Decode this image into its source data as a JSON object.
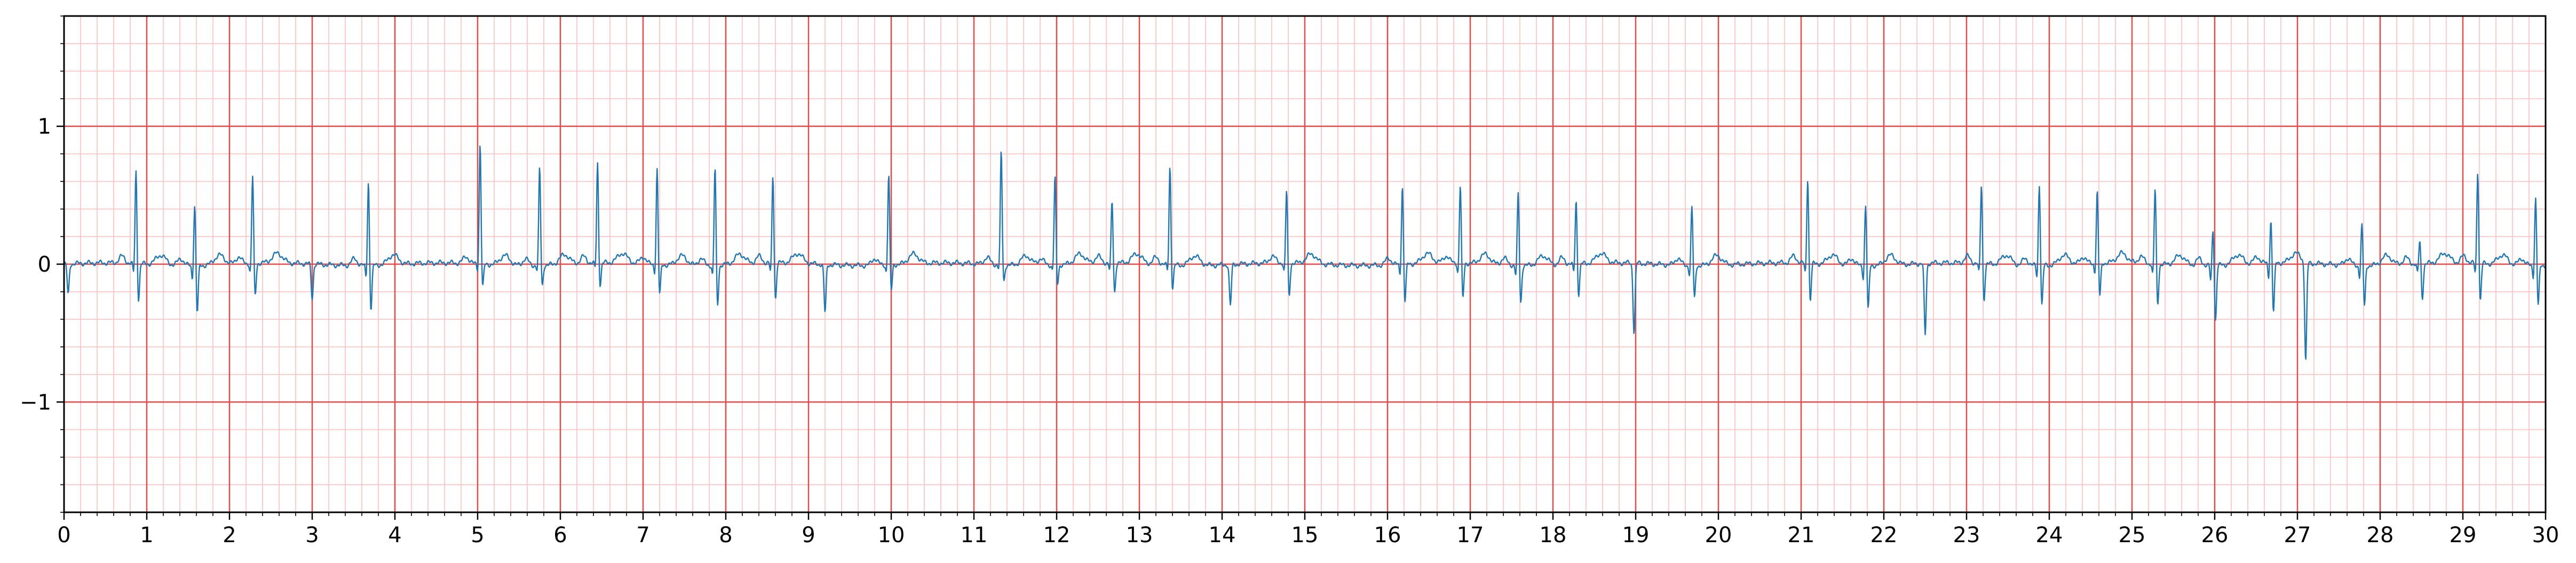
{
  "chart_data": {
    "type": "line",
    "title": "",
    "xlabel": "",
    "ylabel": "",
    "xlim": [
      0,
      30
    ],
    "ylim": [
      -1.8,
      1.8
    ],
    "x_ticks": [
      0,
      1,
      2,
      3,
      4,
      5,
      6,
      7,
      8,
      9,
      10,
      11,
      12,
      13,
      14,
      15,
      16,
      17,
      18,
      19,
      20,
      21,
      22,
      23,
      24,
      25,
      26,
      27,
      28,
      29,
      30
    ],
    "x_tick_labels": [
      "0",
      "1",
      "2",
      "3",
      "4",
      "5",
      "6",
      "7",
      "8",
      "9",
      "10",
      "11",
      "12",
      "13",
      "14",
      "15",
      "16",
      "17",
      "18",
      "19",
      "20",
      "21",
      "22",
      "23",
      "24",
      "25",
      "26",
      "27",
      "28",
      "29",
      "30"
    ],
    "y_ticks": [
      -1,
      0,
      1
    ],
    "y_tick_labels": [
      "−1",
      "0",
      "1"
    ],
    "grid": {
      "major": true,
      "minor": true,
      "major_step_x": 1,
      "minor_step_x": 0.2,
      "major_step_y": 1,
      "minor_step_y": 0.2,
      "major_color": "#e84a4a",
      "minor_color": "#ffc0c0"
    },
    "series_color": "#1f77b4",
    "beats": [
      {
        "t": 0.87,
        "r": 0.68,
        "q": -0.27
      },
      {
        "t": 1.58,
        "r": 0.45,
        "q": -0.35
      },
      {
        "t": 2.28,
        "r": 0.64,
        "q": -0.25
      },
      {
        "t": 3.68,
        "r": 0.62,
        "q": -0.33
      },
      {
        "t": 5.03,
        "r": 0.88,
        "q": -0.18
      },
      {
        "t": 5.75,
        "r": 0.71,
        "q": -0.16
      },
      {
        "t": 6.45,
        "r": 0.73,
        "q": -0.17
      },
      {
        "t": 7.17,
        "r": 0.7,
        "q": -0.23
      },
      {
        "t": 7.87,
        "r": 0.71,
        "q": -0.3
      },
      {
        "t": 8.57,
        "r": 0.64,
        "q": -0.27
      },
      {
        "t": 9.97,
        "r": 0.66,
        "q": -0.2
      },
      {
        "t": 11.33,
        "r": 0.82,
        "q": -0.13
      },
      {
        "t": 11.98,
        "r": 0.64,
        "q": -0.15
      },
      {
        "t": 12.67,
        "r": 0.45,
        "q": -0.22
      },
      {
        "t": 13.37,
        "r": 0.72,
        "q": -0.18
      },
      {
        "t": 14.78,
        "r": 0.53,
        "q": -0.25
      },
      {
        "t": 16.18,
        "r": 0.58,
        "q": -0.28
      },
      {
        "t": 16.88,
        "r": 0.57,
        "q": -0.27
      },
      {
        "t": 17.58,
        "r": 0.53,
        "q": -0.28
      },
      {
        "t": 18.28,
        "r": 0.47,
        "q": -0.23
      },
      {
        "t": 19.68,
        "r": 0.43,
        "q": -0.25
      },
      {
        "t": 21.08,
        "r": 0.63,
        "q": -0.28
      },
      {
        "t": 21.78,
        "r": 0.45,
        "q": -0.33
      },
      {
        "t": 23.18,
        "r": 0.58,
        "q": -0.27
      },
      {
        "t": 23.88,
        "r": 0.6,
        "q": -0.3
      },
      {
        "t": 24.58,
        "r": 0.53,
        "q": -0.25
      },
      {
        "t": 25.28,
        "r": 0.55,
        "q": -0.3
      },
      {
        "t": 25.98,
        "r": 0.27,
        "q": -0.4
      },
      {
        "t": 26.68,
        "r": 0.32,
        "q": -0.36
      },
      {
        "t": 27.78,
        "r": 0.3,
        "q": -0.3
      },
      {
        "t": 28.48,
        "r": 0.17,
        "q": -0.25
      },
      {
        "t": 29.18,
        "r": 0.68,
        "q": -0.28
      },
      {
        "t": 29.88,
        "r": 0.5,
        "q": -0.3
      }
    ],
    "dips": [
      {
        "t": 18.98,
        "v": -0.5
      },
      {
        "t": 22.5,
        "v": -0.52
      },
      {
        "t": 27.1,
        "v": -0.72
      },
      {
        "t": 0.05,
        "v": -0.22
      },
      {
        "t": 3.0,
        "v": -0.25
      },
      {
        "t": 9.2,
        "v": -0.35
      },
      {
        "t": 14.1,
        "v": -0.3
      }
    ]
  }
}
